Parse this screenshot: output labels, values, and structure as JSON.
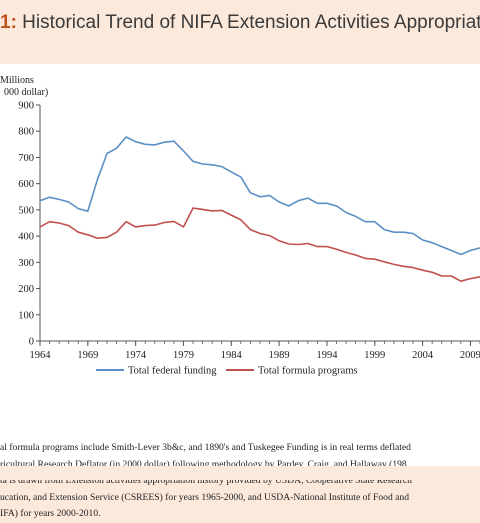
{
  "title": {
    "prefix": "1:",
    "text": " Historical Trend of NIFA Extension Activities Appropriation (in"
  },
  "chart_data": {
    "type": "line",
    "ylabel_line1": "Millions",
    "ylabel_line2": "000 dollar)",
    "ylim": [
      0,
      900
    ],
    "yticks": [
      0,
      100,
      200,
      300,
      400,
      500,
      600,
      700,
      800,
      900
    ],
    "xlim": [
      1964,
      2010
    ],
    "xticks": [
      1964,
      1969,
      1974,
      1979,
      1984,
      1989,
      1994,
      1999,
      2004,
      2009
    ],
    "legend_position": "bottom",
    "grid": false,
    "series": [
      {
        "name": "Total federal funding",
        "color": "#5b8fc7",
        "x": [
          1964,
          1965,
          1966,
          1967,
          1968,
          1969,
          1970,
          1971,
          1972,
          1973,
          1974,
          1975,
          1976,
          1977,
          1978,
          1979,
          1980,
          1981,
          1982,
          1983,
          1984,
          1985,
          1986,
          1987,
          1988,
          1989,
          1990,
          1991,
          1992,
          1993,
          1994,
          1995,
          1996,
          1997,
          1998,
          1999,
          2000,
          2001,
          2002,
          2003,
          2004,
          2005,
          2006,
          2007,
          2008,
          2009,
          2010
        ],
        "values": [
          535,
          548,
          540,
          530,
          505,
          495,
          615,
          715,
          735,
          778,
          760,
          750,
          748,
          758,
          762,
          725,
          685,
          675,
          672,
          665,
          645,
          625,
          565,
          550,
          555,
          530,
          515,
          535,
          545,
          525,
          525,
          515,
          490,
          475,
          455,
          455,
          425,
          415,
          415,
          410,
          385,
          375,
          360,
          345,
          330,
          345,
          355
        ]
      },
      {
        "name": "Total formula programs",
        "color": "#c0504d",
        "x": [
          1964,
          1965,
          1966,
          1967,
          1968,
          1969,
          1970,
          1971,
          1972,
          1973,
          1974,
          1975,
          1976,
          1977,
          1978,
          1979,
          1980,
          1981,
          1982,
          1983,
          1984,
          1985,
          1986,
          1987,
          1988,
          1989,
          1990,
          1991,
          1992,
          1993,
          1994,
          1995,
          1996,
          1997,
          1998,
          1999,
          2000,
          2001,
          2002,
          2003,
          2004,
          2005,
          2006,
          2007,
          2008,
          2009,
          2010
        ],
        "values": [
          435,
          455,
          450,
          440,
          415,
          405,
          392,
          395,
          415,
          455,
          435,
          440,
          442,
          452,
          456,
          435,
          507,
          502,
          496,
          498,
          480,
          462,
          425,
          410,
          402,
          382,
          370,
          368,
          372,
          360,
          360,
          350,
          338,
          328,
          315,
          312,
          302,
          292,
          285,
          280,
          270,
          262,
          248,
          248,
          228,
          238,
          245
        ]
      }
    ]
  },
  "notes": [
    "al formula programs include Smith-Lever 3b&c, and 1890's and Tuskegee Funding is in real terms deflated",
    "ricultural Research Deflator (in 2000 dollar) following methodology by Pardey, Craig, and Hallaway (198",
    "ta is drawn from Extension activities appropriation history provided by USDA, Cooperative State Research",
    "ucation, and Extension Service (CSREES) for years 1965-2000, and USDA-National Institute of Food and",
    "IFA) for years 2000-2010."
  ]
}
